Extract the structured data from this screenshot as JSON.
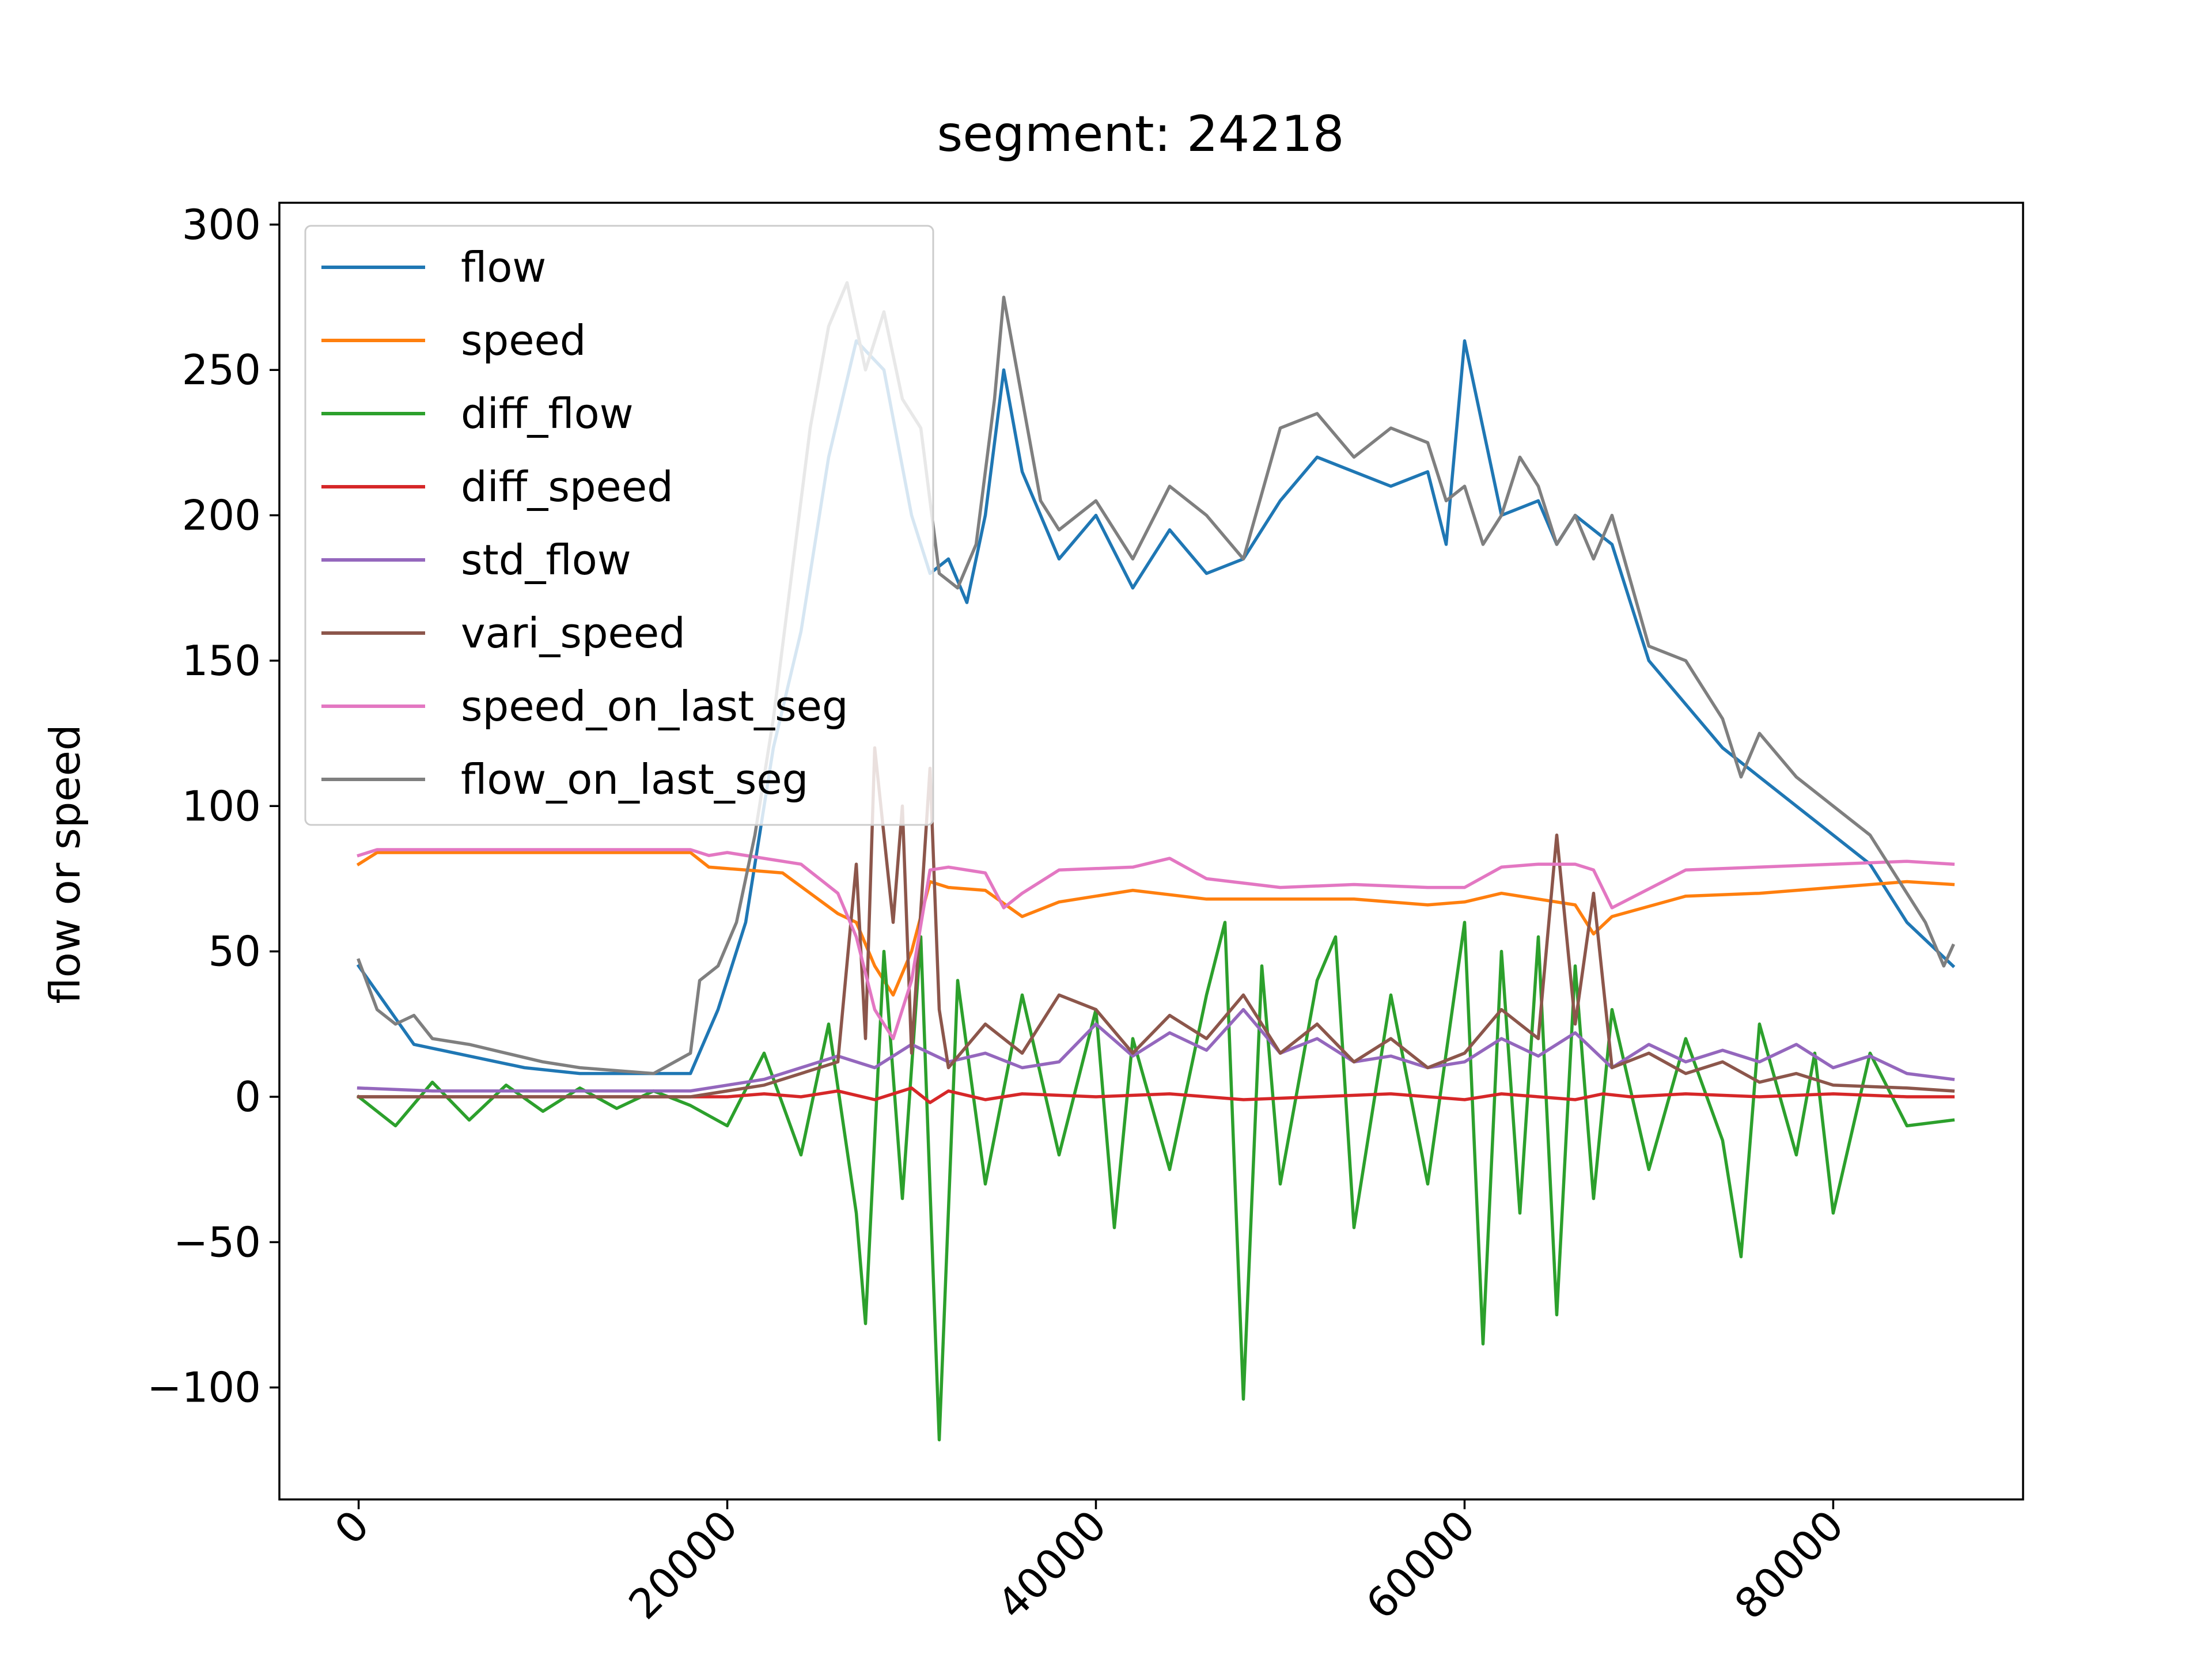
{
  "chart_data": {
    "type": "line",
    "title": "segment: 24218",
    "xlabel": "",
    "ylabel": "flow or speed",
    "xlim": [
      -4300,
      90300
    ],
    "ylim": [
      -138.5,
      307.5
    ],
    "xticks": [
      0,
      20000,
      40000,
      60000,
      80000
    ],
    "xtick_labels": [
      "0",
      "20000",
      "40000",
      "60000",
      "80000"
    ],
    "yticks": [
      -100,
      -50,
      0,
      50,
      100,
      150,
      200,
      250,
      300
    ],
    "ytick_labels": [
      "−100",
      "−50",
      "0",
      "50",
      "100",
      "150",
      "200",
      "250",
      "300"
    ],
    "xtick_rotation_deg": 45,
    "grid": false,
    "legend_position": "upper left",
    "series": [
      {
        "name": "flow",
        "color": "#1f77b4",
        "x": [
          0,
          3000,
          6000,
          9000,
          12000,
          15000,
          18000,
          19500,
          21000,
          22500,
          24000,
          25500,
          27000,
          28500,
          30000,
          31000,
          32000,
          33000,
          34000,
          35000,
          36000,
          38000,
          40000,
          42000,
          44000,
          46000,
          48000,
          50000,
          52000,
          54000,
          56000,
          58000,
          59000,
          60000,
          62000,
          64000,
          65000,
          66000,
          68000,
          70000,
          72000,
          74000,
          76000,
          78000,
          80000,
          82000,
          84000,
          86500
        ],
        "y": [
          45,
          18,
          14,
          10,
          8,
          8,
          8,
          30,
          60,
          120,
          160,
          220,
          260,
          250,
          200,
          180,
          185,
          170,
          200,
          250,
          215,
          185,
          200,
          175,
          195,
          180,
          185,
          205,
          220,
          215,
          210,
          215,
          190,
          260,
          200,
          205,
          190,
          200,
          190,
          150,
          135,
          120,
          110,
          100,
          90,
          80,
          60,
          45
        ]
      },
      {
        "name": "speed",
        "color": "#ff7f0e",
        "x": [
          0,
          1000,
          18000,
          19000,
          21000,
          23000,
          24500,
          26000,
          27000,
          28000,
          29000,
          30000,
          31000,
          32000,
          34000,
          36000,
          38000,
          42000,
          46000,
          50000,
          54000,
          58000,
          60000,
          62000,
          64000,
          66000,
          67000,
          68000,
          72000,
          76000,
          80000,
          84000,
          86500
        ],
        "y": [
          80,
          84,
          84,
          79,
          78,
          77,
          70,
          63,
          60,
          45,
          35,
          50,
          74,
          72,
          71,
          62,
          67,
          71,
          68,
          68,
          68,
          66,
          67,
          70,
          68,
          66,
          56,
          62,
          69,
          70,
          72,
          74,
          73
        ]
      },
      {
        "name": "diff_flow",
        "color": "#2ca02c",
        "x": [
          0,
          2000,
          4000,
          6000,
          8000,
          10000,
          12000,
          14000,
          16000,
          18000,
          20000,
          22000,
          24000,
          25500,
          27000,
          27500,
          28500,
          29500,
          30500,
          31500,
          32500,
          34000,
          36000,
          38000,
          40000,
          41000,
          42000,
          44000,
          46000,
          47000,
          48000,
          49000,
          50000,
          52000,
          53000,
          54000,
          56000,
          58000,
          60000,
          61000,
          62000,
          63000,
          64000,
          65000,
          66000,
          67000,
          68000,
          70000,
          72000,
          74000,
          75000,
          76000,
          78000,
          79000,
          80000,
          82000,
          84000,
          86500
        ],
        "y": [
          0,
          -10,
          5,
          -8,
          4,
          -5,
          3,
          -4,
          2,
          -3,
          -10,
          15,
          -20,
          25,
          -40,
          -78,
          50,
          -35,
          55,
          -118,
          40,
          -30,
          35,
          -20,
          30,
          -45,
          20,
          -25,
          35,
          60,
          -104,
          45,
          -30,
          40,
          55,
          -45,
          35,
          -30,
          60,
          -85,
          50,
          -40,
          55,
          -75,
          45,
          -35,
          30,
          -25,
          20,
          -15,
          -55,
          25,
          -20,
          15,
          -40,
          15,
          -10,
          -8
        ]
      },
      {
        "name": "diff_speed",
        "color": "#d62728",
        "x": [
          0,
          2000,
          6000,
          10000,
          14000,
          18000,
          20000,
          22000,
          24000,
          26000,
          28000,
          30000,
          31000,
          32000,
          34000,
          36000,
          40000,
          44000,
          48000,
          52000,
          56000,
          60000,
          62000,
          64000,
          66000,
          67500,
          69000,
          72000,
          76000,
          80000,
          84000,
          86500
        ],
        "y": [
          0,
          0,
          0,
          0,
          0,
          0,
          0,
          1,
          0,
          2,
          -1,
          3,
          -2,
          2,
          -1,
          1,
          0,
          1,
          -1,
          0,
          1,
          -1,
          1,
          0,
          -1,
          1,
          0,
          1,
          0,
          1,
          0,
          0
        ]
      },
      {
        "name": "std_flow",
        "color": "#9467bd",
        "x": [
          0,
          4000,
          8000,
          12000,
          16000,
          18000,
          20000,
          22000,
          24000,
          26000,
          28000,
          30000,
          32000,
          34000,
          36000,
          38000,
          40000,
          42000,
          44000,
          46000,
          48000,
          50000,
          52000,
          54000,
          56000,
          58000,
          60000,
          62000,
          64000,
          66000,
          68000,
          70000,
          72000,
          74000,
          76000,
          78000,
          80000,
          82000,
          84000,
          86500
        ],
        "y": [
          3,
          2,
          2,
          2,
          2,
          2,
          4,
          6,
          10,
          14,
          10,
          18,
          12,
          15,
          10,
          12,
          25,
          14,
          22,
          16,
          30,
          15,
          20,
          12,
          14,
          10,
          12,
          20,
          14,
          22,
          10,
          18,
          12,
          16,
          12,
          18,
          10,
          14,
          8,
          6
        ]
      },
      {
        "name": "vari_speed",
        "color": "#8c564b",
        "x": [
          0,
          4000,
          8000,
          12000,
          16000,
          18000,
          20000,
          22000,
          24000,
          26000,
          27000,
          27500,
          28000,
          29000,
          29500,
          30000,
          31000,
          31500,
          32000,
          34000,
          36000,
          38000,
          40000,
          42000,
          44000,
          46000,
          48000,
          50000,
          52000,
          54000,
          56000,
          58000,
          60000,
          62000,
          64000,
          65000,
          66000,
          67000,
          68000,
          70000,
          72000,
          74000,
          76000,
          78000,
          80000,
          84000,
          86500
        ],
        "y": [
          0,
          0,
          0,
          0,
          0,
          0,
          2,
          4,
          8,
          12,
          80,
          20,
          120,
          60,
          100,
          15,
          113,
          30,
          10,
          25,
          15,
          35,
          30,
          15,
          28,
          20,
          35,
          15,
          25,
          12,
          20,
          10,
          15,
          30,
          20,
          90,
          25,
          70,
          10,
          15,
          8,
          12,
          5,
          8,
          4,
          3,
          2
        ]
      },
      {
        "name": "speed_on_last_seg",
        "color": "#e377c2",
        "x": [
          0,
          1000,
          18000,
          19000,
          20000,
          22000,
          24000,
          25000,
          26000,
          27000,
          28000,
          29000,
          30000,
          31000,
          32000,
          34000,
          35000,
          36000,
          38000,
          42000,
          44000,
          46000,
          50000,
          54000,
          58000,
          60000,
          62000,
          64000,
          66000,
          67000,
          68000,
          72000,
          76000,
          80000,
          84000,
          86500
        ],
        "y": [
          83,
          85,
          85,
          83,
          84,
          82,
          80,
          75,
          70,
          55,
          30,
          20,
          40,
          78,
          79,
          77,
          65,
          70,
          78,
          79,
          82,
          75,
          72,
          73,
          72,
          72,
          79,
          80,
          80,
          78,
          65,
          78,
          79,
          80,
          81,
          80
        ]
      },
      {
        "name": "flow_on_last_seg",
        "color": "#7f7f7f",
        "x": [
          0,
          1000,
          2000,
          3000,
          4000,
          6000,
          8000,
          10000,
          12000,
          14000,
          16000,
          18000,
          18500,
          19500,
          20500,
          21500,
          22500,
          23500,
          24500,
          25500,
          26500,
          27500,
          28500,
          29500,
          30500,
          31500,
          32500,
          33500,
          34500,
          35000,
          36000,
          37000,
          38000,
          40000,
          42000,
          44000,
          46000,
          48000,
          50000,
          52000,
          54000,
          56000,
          58000,
          59000,
          60000,
          61000,
          62000,
          63000,
          64000,
          65000,
          66000,
          67000,
          68000,
          70000,
          72000,
          74000,
          75000,
          76000,
          78000,
          80000,
          82000,
          84000,
          85000,
          86000,
          86500
        ],
        "y": [
          47,
          30,
          25,
          28,
          20,
          18,
          15,
          12,
          10,
          9,
          8,
          15,
          40,
          45,
          60,
          90,
          130,
          180,
          230,
          265,
          280,
          250,
          270,
          240,
          230,
          180,
          175,
          190,
          240,
          275,
          240,
          205,
          195,
          205,
          185,
          210,
          200,
          185,
          230,
          235,
          220,
          230,
          225,
          205,
          210,
          190,
          200,
          220,
          210,
          190,
          200,
          185,
          200,
          155,
          150,
          130,
          110,
          125,
          110,
          100,
          90,
          70,
          60,
          45,
          52
        ]
      }
    ]
  }
}
